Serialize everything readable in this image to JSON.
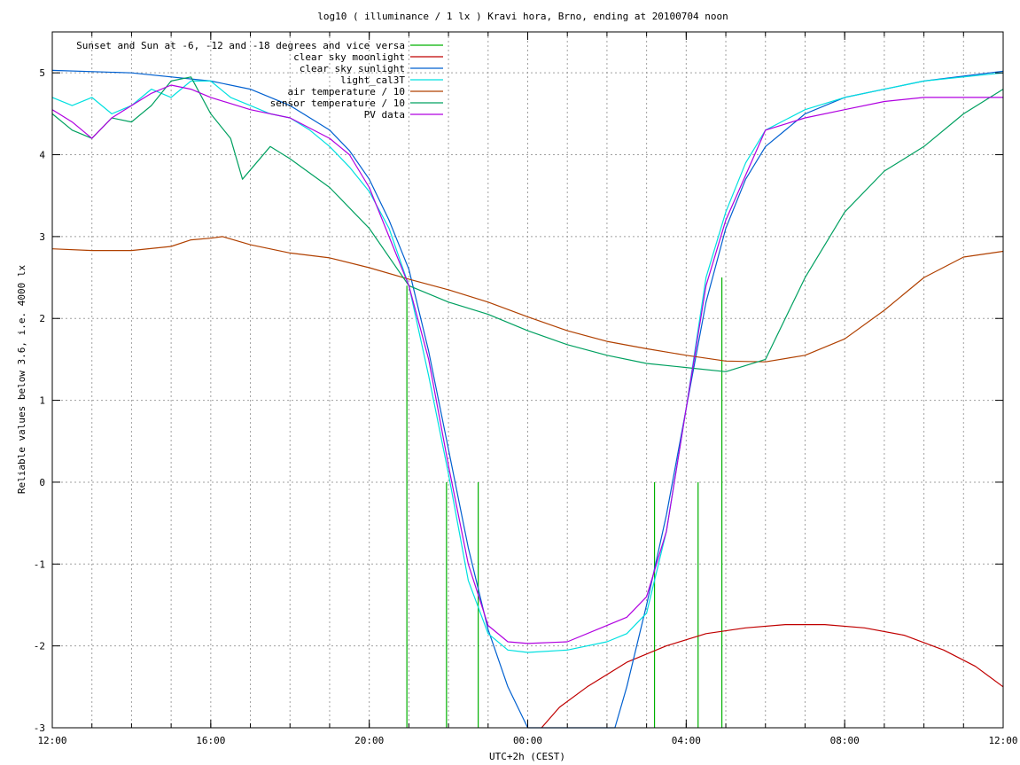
{
  "chart_data": {
    "type": "line",
    "title": "log10 ( illuminance / 1 lx ) Kravi hora, Brno, ending at 20100704 noon",
    "xlabel": "UTC+2h (CEST)",
    "ylabel": "Reliable values below 3.6, i.e. 4000 lx",
    "xlim": [
      0,
      24
    ],
    "ylim": [
      -3,
      5.5
    ],
    "x_unit": "hours since 12:00 (previous day)",
    "x_ticks": [
      {
        "value": 0,
        "label": "12:00"
      },
      {
        "value": 4,
        "label": "16:00"
      },
      {
        "value": 8,
        "label": "20:00"
      },
      {
        "value": 12,
        "label": "00:00"
      },
      {
        "value": 16,
        "label": "04:00"
      },
      {
        "value": 20,
        "label": "08:00"
      },
      {
        "value": 24,
        "label": "12:00"
      }
    ],
    "y_ticks": [
      -3,
      -2,
      -1,
      0,
      1,
      2,
      3,
      4,
      5
    ],
    "grid": true,
    "legend_position": "top-left",
    "series": [
      {
        "name": "Sunset and Sun at -6, -12 and -18 degrees and vice versa",
        "color": "#00b000",
        "kind": "impulses",
        "points": [
          [
            8.95,
            2.4
          ],
          [
            9.95,
            0
          ],
          [
            10.75,
            0
          ],
          [
            15.2,
            0
          ],
          [
            16.3,
            0
          ],
          [
            16.9,
            2.5
          ]
        ]
      },
      {
        "name": "clear sky moonlight",
        "color": "#c00000",
        "points": [
          [
            12.35,
            -3
          ],
          [
            12.8,
            -2.75
          ],
          [
            13.5,
            -2.5
          ],
          [
            14.5,
            -2.2
          ],
          [
            15.5,
            -2.0
          ],
          [
            16.5,
            -1.85
          ],
          [
            17.5,
            -1.78
          ],
          [
            18.5,
            -1.74
          ],
          [
            19.5,
            -1.74
          ],
          [
            20.5,
            -1.78
          ],
          [
            21.5,
            -1.87
          ],
          [
            22.5,
            -2.05
          ],
          [
            23.3,
            -2.25
          ],
          [
            24,
            -2.5
          ]
        ]
      },
      {
        "name": "clear sky sunlight",
        "color": "#0060d0",
        "points": [
          [
            0,
            5.03
          ],
          [
            2,
            5.0
          ],
          [
            4,
            4.9
          ],
          [
            5,
            4.8
          ],
          [
            6,
            4.6
          ],
          [
            7,
            4.3
          ],
          [
            7.5,
            4.05
          ],
          [
            8,
            3.7
          ],
          [
            8.5,
            3.2
          ],
          [
            9,
            2.6
          ],
          [
            9.5,
            1.6
          ],
          [
            10,
            0.4
          ],
          [
            10.5,
            -0.8
          ],
          [
            11,
            -1.8
          ],
          [
            11.5,
            -2.5
          ],
          [
            12,
            -3.0
          ],
          [
            14.2,
            -3.0
          ],
          [
            14.5,
            -2.5
          ],
          [
            15,
            -1.5
          ],
          [
            15.5,
            -0.4
          ],
          [
            16,
            0.9
          ],
          [
            16.5,
            2.2
          ],
          [
            17,
            3.1
          ],
          [
            17.5,
            3.7
          ],
          [
            18,
            4.1
          ],
          [
            19,
            4.5
          ],
          [
            20,
            4.7
          ],
          [
            22,
            4.9
          ],
          [
            24,
            5.02
          ]
        ]
      },
      {
        "name": "light_cal3T",
        "color": "#00e0e0",
        "points": [
          [
            0,
            4.7
          ],
          [
            0.5,
            4.6
          ],
          [
            1,
            4.7
          ],
          [
            1.5,
            4.5
          ],
          [
            2,
            4.6
          ],
          [
            2.5,
            4.8
          ],
          [
            3,
            4.7
          ],
          [
            3.5,
            4.9
          ],
          [
            4,
            4.9
          ],
          [
            4.5,
            4.7
          ],
          [
            5,
            4.6
          ],
          [
            5.5,
            4.5
          ],
          [
            6,
            4.45
          ],
          [
            6.5,
            4.3
          ],
          [
            7,
            4.1
          ],
          [
            7.5,
            3.85
          ],
          [
            8,
            3.55
          ],
          [
            8.5,
            3.1
          ],
          [
            9,
            2.4
          ],
          [
            9.5,
            1.3
          ],
          [
            10,
            0.1
          ],
          [
            10.5,
            -1.2
          ],
          [
            11,
            -1.85
          ],
          [
            11.5,
            -2.05
          ],
          [
            12,
            -2.08
          ],
          [
            13,
            -2.05
          ],
          [
            14,
            -1.95
          ],
          [
            14.5,
            -1.85
          ],
          [
            15,
            -1.6
          ],
          [
            15.5,
            -0.6
          ],
          [
            16,
            0.9
          ],
          [
            16.5,
            2.5
          ],
          [
            17,
            3.3
          ],
          [
            17.5,
            3.9
          ],
          [
            18,
            4.3
          ],
          [
            19,
            4.55
          ],
          [
            20,
            4.7
          ],
          [
            21,
            4.8
          ],
          [
            22,
            4.9
          ],
          [
            23,
            4.95
          ],
          [
            24,
            5.0
          ]
        ]
      },
      {
        "name": "air temperature / 10",
        "color": "#b04000",
        "points": [
          [
            0,
            2.85
          ],
          [
            1,
            2.83
          ],
          [
            2,
            2.83
          ],
          [
            3,
            2.88
          ],
          [
            3.5,
            2.96
          ],
          [
            4,
            2.98
          ],
          [
            4.3,
            3.0
          ],
          [
            5,
            2.9
          ],
          [
            6,
            2.8
          ],
          [
            7,
            2.74
          ],
          [
            8,
            2.62
          ],
          [
            9,
            2.48
          ],
          [
            10,
            2.35
          ],
          [
            11,
            2.2
          ],
          [
            12,
            2.02
          ],
          [
            13,
            1.85
          ],
          [
            14,
            1.72
          ],
          [
            15,
            1.63
          ],
          [
            16,
            1.55
          ],
          [
            17,
            1.48
          ],
          [
            18,
            1.47
          ],
          [
            19,
            1.55
          ],
          [
            20,
            1.75
          ],
          [
            21,
            2.1
          ],
          [
            22,
            2.5
          ],
          [
            23,
            2.75
          ],
          [
            24,
            2.82
          ]
        ]
      },
      {
        "name": "sensor temperature / 10",
        "color": "#00a060",
        "points": [
          [
            0,
            4.5
          ],
          [
            0.5,
            4.3
          ],
          [
            1,
            4.2
          ],
          [
            1.5,
            4.45
          ],
          [
            2,
            4.4
          ],
          [
            2.5,
            4.6
          ],
          [
            3,
            4.9
          ],
          [
            3.5,
            4.95
          ],
          [
            4,
            4.5
          ],
          [
            4.5,
            4.2
          ],
          [
            4.8,
            3.7
          ],
          [
            5.5,
            4.1
          ],
          [
            6,
            3.95
          ],
          [
            7,
            3.6
          ],
          [
            8,
            3.1
          ],
          [
            9,
            2.4
          ],
          [
            10,
            2.2
          ],
          [
            11,
            2.05
          ],
          [
            12,
            1.85
          ],
          [
            13,
            1.68
          ],
          [
            14,
            1.55
          ],
          [
            15,
            1.45
          ],
          [
            16,
            1.4
          ],
          [
            17,
            1.35
          ],
          [
            18,
            1.5
          ],
          [
            19,
            2.5
          ],
          [
            20,
            3.3
          ],
          [
            21,
            3.8
          ],
          [
            22,
            4.1
          ],
          [
            23,
            4.5
          ],
          [
            24,
            4.8
          ]
        ]
      },
      {
        "name": "PV data",
        "color": "#b000e0",
        "points": [
          [
            0,
            4.55
          ],
          [
            0.5,
            4.4
          ],
          [
            1,
            4.2
          ],
          [
            1.5,
            4.45
          ],
          [
            2,
            4.6
          ],
          [
            2.5,
            4.75
          ],
          [
            3,
            4.85
          ],
          [
            3.5,
            4.8
          ],
          [
            4,
            4.7
          ],
          [
            5,
            4.55
          ],
          [
            6,
            4.45
          ],
          [
            7,
            4.2
          ],
          [
            7.5,
            4.0
          ],
          [
            8,
            3.6
          ],
          [
            8.5,
            3.0
          ],
          [
            9,
            2.4
          ],
          [
            9.5,
            1.5
          ],
          [
            10,
            0.2
          ],
          [
            10.5,
            -1.0
          ],
          [
            11,
            -1.75
          ],
          [
            11.5,
            -1.95
          ],
          [
            12,
            -1.97
          ],
          [
            13,
            -1.95
          ],
          [
            14,
            -1.75
          ],
          [
            14.5,
            -1.65
          ],
          [
            15,
            -1.4
          ],
          [
            15.5,
            -0.6
          ],
          [
            16,
            0.9
          ],
          [
            16.5,
            2.4
          ],
          [
            17,
            3.2
          ],
          [
            17.5,
            3.75
          ],
          [
            18,
            4.3
          ],
          [
            19,
            4.45
          ],
          [
            20,
            4.55
          ],
          [
            21,
            4.65
          ],
          [
            22,
            4.7
          ],
          [
            23,
            4.7
          ],
          [
            24,
            4.7
          ]
        ]
      }
    ]
  }
}
